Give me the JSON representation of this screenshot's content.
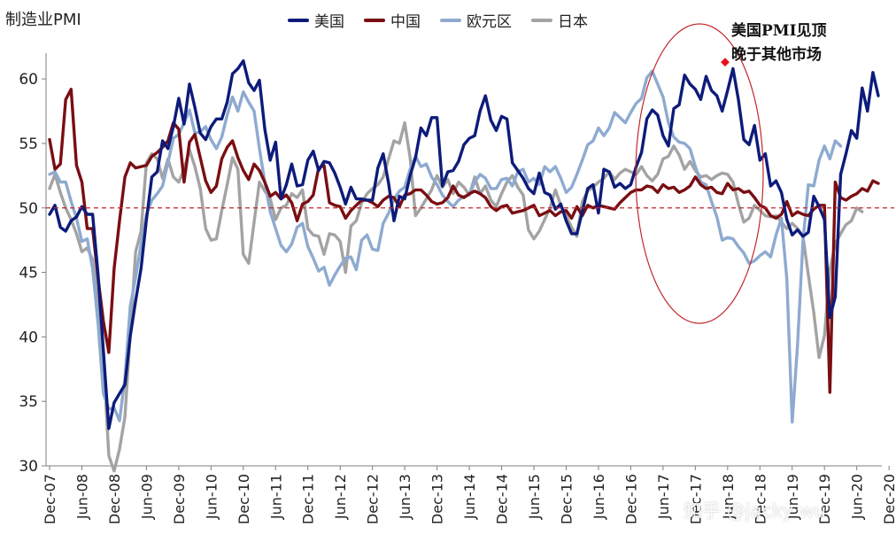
{
  "header": {
    "ylabel": "制造业PMI"
  },
  "annotation": {
    "line1": "美国PMI见顶",
    "line2": "晚于其他市场"
  },
  "watermark": "知乎 @jacky wu",
  "colors": {
    "us": "#0d1b7a",
    "china": "#7a0e12",
    "euro": "#8eaad0",
    "japan": "#a3a3a3",
    "ref": "#c0282c",
    "ellipse": "#c0282c"
  },
  "chart_data": {
    "type": "line",
    "ylabel": "制造业PMI",
    "ylim": [
      30,
      62
    ],
    "yticks": [
      30,
      35,
      40,
      45,
      50,
      55,
      60
    ],
    "xticks": [
      "Dec-07",
      "Jun-08",
      "Dec-08",
      "Jun-09",
      "Dec-09",
      "Jun-10",
      "Dec-10",
      "Jun-11",
      "Dec-11",
      "Jun-12",
      "Dec-12",
      "Jun-13",
      "Dec-13",
      "Jun-14",
      "Dec-14",
      "Jun-15",
      "Dec-15",
      "Jun-16",
      "Dec-16",
      "Jun-17",
      "Dec-17",
      "Jun-18",
      "Dec-18",
      "Jun-19",
      "Dec-19",
      "Jun-20",
      "Dec-20"
    ],
    "reference_line": 50,
    "peak_marker": {
      "series": "美国",
      "x": "Aug-18",
      "y": 61.3
    },
    "legend_position": "top",
    "series": [
      {
        "name": "美国",
        "color": "#0d1b7a",
        "values": [
          49.5,
          50.2,
          48.5,
          48.2,
          49.0,
          49.3,
          50.1,
          49.5,
          49.5,
          44.9,
          38.9,
          32.9,
          34.9,
          35.6,
          36.3,
          40.1,
          42.8,
          45.3,
          49.1,
          52.4,
          52.8,
          55.2,
          54.6,
          56.3,
          58.5,
          56.5,
          59.6,
          57.8,
          55.8,
          55.3,
          56.3,
          56.9,
          56.9,
          58.2,
          60.4,
          60.8,
          61.4,
          59.7,
          59.1,
          59.9,
          56.1,
          53.7,
          55.1,
          50.7,
          51.8,
          53.4,
          51.7,
          51.8,
          53.7,
          54.4,
          52.9,
          53.6,
          53.5,
          52.7,
          51.6,
          50.3,
          51.6,
          50.7,
          50.7,
          50.6,
          50.6,
          53.1,
          54.2,
          51.9,
          49.0,
          50.9,
          50.7,
          52.5,
          53.9,
          56.2,
          55.6,
          57.0,
          57.0,
          51.7,
          52.8,
          52.9,
          53.6,
          54.9,
          55.4,
          55.6,
          57.5,
          58.7,
          56.8,
          56.0,
          57.1,
          56.9,
          53.5,
          52.9,
          52.3,
          51.5,
          51.1,
          52.7,
          51.2,
          51.0,
          49.9,
          50.3,
          49.0,
          48.0,
          48.0,
          49.7,
          51.5,
          51.8,
          49.6,
          53.0,
          52.8,
          51.6,
          51.9,
          51.5,
          51.8,
          53.2,
          54.3,
          56.9,
          57.6,
          57.2,
          55.6,
          54.8,
          57.7,
          58.0,
          60.3,
          59.6,
          59.2,
          58.4,
          60.2,
          59.1,
          58.7,
          57.5,
          59.1,
          60.8,
          58.4,
          55.3,
          54.9,
          56.4,
          53.7,
          54.2,
          51.7,
          52.1,
          51.2,
          49.1,
          47.9,
          48.3,
          47.8,
          48.1,
          50.9,
          50.1,
          49.1,
          41.5,
          43.1,
          52.6,
          54.2,
          56.0,
          55.4,
          59.3,
          57.5,
          60.5,
          58.7
        ]
      },
      {
        "name": "中国",
        "color": "#7a0e12",
        "values": [
          55.3,
          53.0,
          53.4,
          58.4,
          59.2,
          53.3,
          52.0,
          48.4,
          48.4,
          44.6,
          41.2,
          38.8,
          45.3,
          49.0,
          52.4,
          53.5,
          53.1,
          53.2,
          53.3,
          54.0,
          54.3,
          54.7,
          55.2,
          56.6,
          56.1,
          52.0,
          55.1,
          55.7,
          53.9,
          52.1,
          51.2,
          51.7,
          53.8,
          54.7,
          55.2,
          53.9,
          52.9,
          52.2,
          53.4,
          52.9,
          52.0,
          50.9,
          51.2,
          50.7,
          51.0,
          50.4,
          49.0,
          50.3,
          50.5,
          51.0,
          53.1,
          53.3,
          50.4,
          50.2,
          50.1,
          49.2,
          49.8,
          50.2,
          50.6,
          50.6,
          50.4,
          50.1,
          50.6,
          50.9,
          50.8,
          50.1,
          51.0,
          51.1,
          51.4,
          51.4,
          51.0,
          50.5,
          50.3,
          50.4,
          50.8,
          51.7,
          51.0,
          50.8,
          51.1,
          51.3,
          51.1,
          50.8,
          50.1,
          49.8,
          50.1,
          50.2,
          49.6,
          49.7,
          49.8,
          50.0,
          50.2,
          49.4,
          49.6,
          49.8,
          49.4,
          49.7,
          49.8,
          49.2,
          50.1,
          49.4,
          50.2,
          50.0,
          50.2,
          50.1,
          50.0,
          49.9,
          50.4,
          50.8,
          51.2,
          51.4,
          51.4,
          51.7,
          51.6,
          51.2,
          51.8,
          51.5,
          51.6,
          51.2,
          51.4,
          51.7,
          52.4,
          51.8,
          51.5,
          51.6,
          51.2,
          51.1,
          51.9,
          51.4,
          51.5,
          51.2,
          51.3,
          50.8,
          50.2,
          50.0,
          49.4,
          49.2,
          49.5,
          50.5,
          49.4,
          49.7,
          49.5,
          49.4,
          49.9,
          50.2,
          50.2,
          35.7,
          52.0,
          50.8,
          50.6,
          50.9,
          51.1,
          51.5,
          51.3,
          52.1,
          51.9
        ]
      },
      {
        "name": "欧元区",
        "color": "#8eaad0",
        "values": [
          52.6,
          52.8,
          52.0,
          52.0,
          50.5,
          49.2,
          47.4,
          47.6,
          45.3,
          41.1,
          35.6,
          34.4,
          34.5,
          33.5,
          36.8,
          42.4,
          44.6,
          47.2,
          49.5,
          50.6,
          51.1,
          51.7,
          53.5,
          55.4,
          55.7,
          56.6,
          57.6,
          55.8,
          55.9,
          56.3,
          55.3,
          54.6,
          55.5,
          57.2,
          58.6,
          57.5,
          59.0,
          58.2,
          57.5,
          54.6,
          52.0,
          49.7,
          48.4,
          47.1,
          46.6,
          47.2,
          48.5,
          48.8,
          47.0,
          46.1,
          45.1,
          45.4,
          44.0,
          44.8,
          45.5,
          46.1,
          46.2,
          45.2,
          47.5,
          47.9,
          46.8,
          46.7,
          48.8,
          49.6,
          50.7,
          51.3,
          51.6,
          53.0,
          54.0,
          53.2,
          53.4,
          52.4,
          51.8,
          51.0,
          50.5,
          50.1,
          50.6,
          50.9,
          51.0,
          52.0,
          52.6,
          52.3,
          51.5,
          51.5,
          52.2,
          52.3,
          51.7,
          52.8,
          53.0,
          52.0,
          52.3,
          51.8,
          53.2,
          52.8,
          53.2,
          52.3,
          51.2,
          51.6,
          52.6,
          53.7,
          54.9,
          55.2,
          56.2,
          55.6,
          56.2,
          57.4,
          57.0,
          56.6,
          57.4,
          58.1,
          58.5,
          60.1,
          60.6,
          59.6,
          58.6,
          56.6,
          55.5,
          55.1,
          55.0,
          54.6,
          53.2,
          52.0,
          51.8,
          50.5,
          49.3,
          47.5,
          47.7,
          47.6,
          47.0,
          46.5,
          45.7,
          45.9,
          46.3,
          46.6,
          46.2,
          47.9,
          49.2,
          44.5,
          33.4,
          39.4,
          47.4,
          51.8,
          51.7,
          53.7,
          54.8,
          53.8,
          55.2,
          54.8
        ]
      },
      {
        "name": "日本",
        "color": "#a3a3a3",
        "values": [
          51.5,
          52.6,
          51.2,
          50.0,
          49.1,
          48.0,
          46.6,
          46.9,
          46.0,
          42.8,
          38.3,
          30.8,
          29.6,
          31.3,
          33.8,
          40.4,
          46.6,
          48.2,
          53.5,
          54.2,
          53.8,
          52.3,
          53.8,
          52.4,
          52.0,
          53.0,
          54.5,
          53.2,
          51.5,
          48.4,
          47.5,
          47.6,
          49.8,
          51.8,
          53.9,
          53.0,
          46.4,
          45.7,
          48.9,
          52.0,
          51.3,
          50.7,
          49.1,
          50.0,
          50.2,
          51.1,
          50.8,
          51.4,
          48.4,
          47.9,
          47.8,
          46.4,
          48.0,
          47.9,
          47.4,
          45.0,
          48.6,
          49.0,
          50.4,
          51.1,
          51.5,
          51.8,
          52.4,
          53.8,
          55.2,
          55.0,
          56.6,
          53.9,
          49.4,
          50.0,
          50.7,
          51.4,
          52.5,
          51.6,
          52.2,
          51.1,
          52.0,
          51.6,
          51.0,
          52.4,
          51.1,
          51.7,
          50.6,
          50.1,
          51.1,
          52.0,
          52.5,
          51.6,
          51.0,
          48.3,
          47.6,
          48.2,
          49.1,
          50.0,
          51.4,
          50.2,
          49.4,
          48.5,
          47.8,
          50.5,
          51.3,
          51.6,
          52.0,
          52.3,
          52.8,
          52.2,
          52.7,
          53.0,
          52.8,
          52.6,
          53.2,
          52.5,
          52.1,
          52.6,
          53.8,
          54.0,
          54.8,
          54.1,
          53.0,
          53.6,
          52.9,
          52.4,
          52.5,
          52.2,
          52.5,
          52.7,
          52.6,
          52.0,
          50.3,
          48.9,
          49.2,
          50.2,
          49.8,
          49.4,
          49.3,
          49.4,
          48.9,
          48.4,
          48.8,
          48.4,
          47.8,
          44.8,
          41.9,
          38.4,
          40.1,
          45.2,
          47.2,
          48.0,
          48.7,
          49.0,
          50.0,
          49.7
        ]
      }
    ]
  }
}
